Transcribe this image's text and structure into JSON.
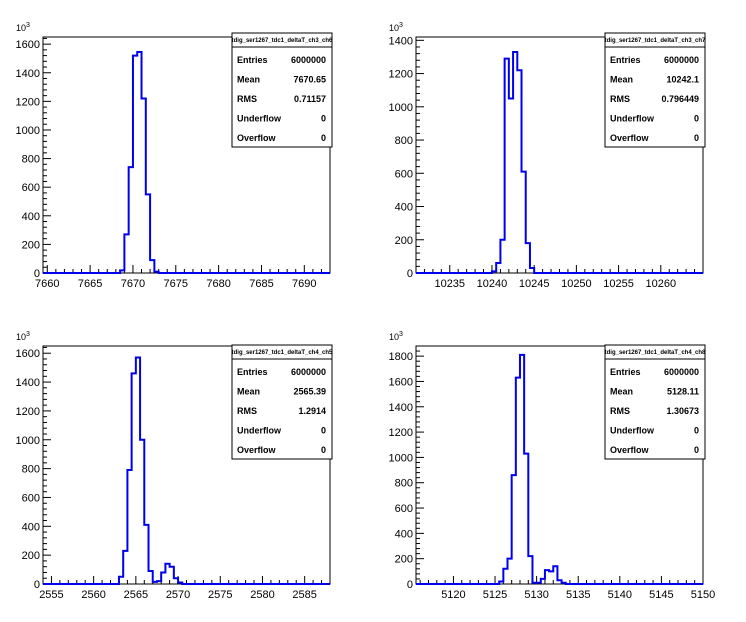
{
  "chart_data": [
    {
      "type": "histogram",
      "title": "tdig_ser1267_tdc1_deltaT_ch3_ch6",
      "exponent_label": "10",
      "exponent_power": "3",
      "xlim": [
        7659.5,
        7693
      ],
      "ylim": [
        0,
        1650
      ],
      "xticks": [
        7660,
        7665,
        7670,
        7675,
        7680,
        7685,
        7690
      ],
      "yticks": [
        0,
        200,
        400,
        600,
        800,
        1000,
        1200,
        1400,
        1600
      ],
      "bin_width": 0.5,
      "x_start": 7668.5,
      "values": [
        18,
        270,
        740,
        1520,
        1545,
        1220,
        550,
        90,
        10
      ],
      "stats": [
        {
          "label": "Entries",
          "value": "6000000"
        },
        {
          "label": "Mean",
          "value": "7670.65"
        },
        {
          "label": "RMS",
          "value": "0.71157"
        },
        {
          "label": "Underflow",
          "value": "0"
        },
        {
          "label": "Overflow",
          "value": "0"
        }
      ]
    },
    {
      "type": "histogram",
      "title": "tdig_ser1267_tdc1_deltaT_ch3_ch7",
      "exponent_label": "10",
      "exponent_power": "3",
      "xlim": [
        10231,
        10265
      ],
      "ylim": [
        0,
        1420
      ],
      "xticks": [
        10235,
        10240,
        10245,
        10250,
        10255,
        10260
      ],
      "yticks": [
        0,
        200,
        400,
        600,
        800,
        1000,
        1200,
        1400
      ],
      "bin_width": 0.5,
      "x_start": 10240.0,
      "values": [
        10,
        60,
        200,
        1290,
        1050,
        1330,
        1220,
        610,
        180,
        30
      ],
      "stats": [
        {
          "label": "Entries",
          "value": "6000000"
        },
        {
          "label": "Mean",
          "value": "10242.1"
        },
        {
          "label": "RMS",
          "value": "0.796449"
        },
        {
          "label": "Underflow",
          "value": "0"
        },
        {
          "label": "Overflow",
          "value": "0"
        }
      ]
    },
    {
      "type": "histogram",
      "title": "tdig_ser1267_tdc1_deltaT_ch4_ch5",
      "exponent_label": "10",
      "exponent_power": "3",
      "xlim": [
        2554,
        2588
      ],
      "ylim": [
        0,
        1650
      ],
      "xticks": [
        2555,
        2560,
        2565,
        2570,
        2575,
        2580,
        2585
      ],
      "yticks": [
        0,
        200,
        400,
        600,
        800,
        1000,
        1200,
        1400,
        1600
      ],
      "bin_width": 0.5,
      "x_start": 2563.0,
      "values": [
        50,
        230,
        790,
        1460,
        1570,
        1000,
        410,
        90,
        15,
        20,
        80,
        140,
        120,
        40,
        10
      ],
      "stats": [
        {
          "label": "Entries",
          "value": "6000000"
        },
        {
          "label": "Mean",
          "value": "2565.39"
        },
        {
          "label": "RMS",
          "value": "1.2914"
        },
        {
          "label": "Underflow",
          "value": "0"
        },
        {
          "label": "Overflow",
          "value": "0"
        }
      ]
    },
    {
      "type": "histogram",
      "title": "tdig_ser1267_tdc1_deltaT_ch4_ch8",
      "exponent_label": "10",
      "exponent_power": "3",
      "xlim": [
        5115.5,
        5150
      ],
      "ylim": [
        0,
        1880
      ],
      "xticks": [
        5120,
        5125,
        5130,
        5135,
        5140,
        5145,
        5150
      ],
      "yticks": [
        0,
        200,
        400,
        600,
        800,
        1000,
        1200,
        1400,
        1600,
        1800
      ],
      "bin_width": 0.5,
      "x_start": 5125.5,
      "values": [
        20,
        120,
        200,
        860,
        1630,
        1810,
        1030,
        220,
        10,
        10,
        40,
        110,
        100,
        140,
        30,
        10
      ],
      "stats": [
        {
          "label": "Entries",
          "value": "6000000"
        },
        {
          "label": "Mean",
          "value": "5128.11"
        },
        {
          "label": "RMS",
          "value": "1.30673"
        },
        {
          "label": "Underflow",
          "value": "0"
        },
        {
          "label": "Overflow",
          "value": "0"
        }
      ]
    }
  ]
}
